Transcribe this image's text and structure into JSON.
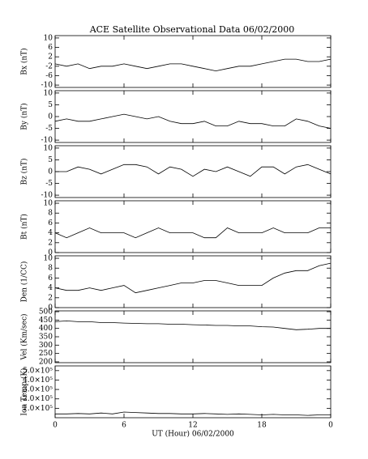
{
  "chart_data": [
    {
      "type": "line",
      "title": "ACE Satellite Observational Data   06/02/2000",
      "ylabel": "Bx (nT)",
      "x": [
        0,
        1,
        2,
        3,
        4,
        5,
        6,
        7,
        8,
        9,
        10,
        11,
        12,
        13,
        14,
        15,
        16,
        17,
        18,
        19,
        20,
        21,
        22,
        23,
        24
      ],
      "values": [
        -1,
        -2,
        -1,
        -3,
        -2,
        -2,
        -1,
        -2,
        -3,
        -2,
        -1,
        -1,
        -2,
        -3,
        -4,
        -3,
        -2,
        -2,
        -1,
        0,
        1,
        1,
        0,
        0,
        1
      ],
      "ylim": [
        -11,
        11
      ],
      "yticks": [
        -10,
        -6,
        -2,
        2,
        6,
        10
      ]
    },
    {
      "type": "line",
      "ylabel": "By (nT)",
      "x": [
        0,
        1,
        2,
        3,
        4,
        5,
        6,
        7,
        8,
        9,
        10,
        11,
        12,
        13,
        14,
        15,
        16,
        17,
        18,
        19,
        20,
        21,
        22,
        23,
        24
      ],
      "values": [
        -2,
        -1,
        -2,
        -2,
        -1,
        0,
        1,
        0,
        -1,
        0,
        -2,
        -3,
        -3,
        -2,
        -4,
        -4,
        -2,
        -3,
        -3,
        -4,
        -4,
        -1,
        -2,
        -4,
        -5
      ],
      "ylim": [
        -11,
        11
      ],
      "yticks": [
        -10,
        -5,
        0,
        5,
        10
      ]
    },
    {
      "type": "line",
      "ylabel": "Bz (nT)",
      "x": [
        0,
        1,
        2,
        3,
        4,
        5,
        6,
        7,
        8,
        9,
        10,
        11,
        12,
        13,
        14,
        15,
        16,
        17,
        18,
        19,
        20,
        21,
        22,
        23,
        24
      ],
      "values": [
        0,
        0,
        2,
        1,
        -1,
        1,
        3,
        3,
        2,
        -1,
        2,
        1,
        -2,
        1,
        0,
        2,
        0,
        -2,
        2,
        2,
        -1,
        2,
        3,
        1,
        -1
      ],
      "ylim": [
        -11,
        11
      ],
      "yticks": [
        -10,
        -5,
        0,
        5,
        10
      ]
    },
    {
      "type": "line",
      "ylabel": "Bt (nT)",
      "x": [
        0,
        1,
        2,
        3,
        4,
        5,
        6,
        7,
        8,
        9,
        10,
        11,
        12,
        13,
        14,
        15,
        16,
        17,
        18,
        19,
        20,
        21,
        22,
        23,
        24
      ],
      "values": [
        4,
        3,
        4,
        5,
        4,
        4,
        4,
        3,
        4,
        5,
        4,
        4,
        4,
        3,
        3,
        5,
        4,
        4,
        4,
        5,
        4,
        4,
        4,
        5,
        5
      ],
      "ylim": [
        0,
        10.5
      ],
      "yticks": [
        0,
        2,
        4,
        6,
        8,
        10
      ]
    },
    {
      "type": "line",
      "ylabel": "Den (1/CC)",
      "x": [
        0,
        1,
        2,
        3,
        4,
        5,
        6,
        7,
        8,
        9,
        10,
        11,
        12,
        13,
        14,
        15,
        16,
        17,
        18,
        19,
        20,
        21,
        22,
        23,
        24
      ],
      "values": [
        4,
        3.5,
        3.5,
        4,
        3.5,
        4,
        4.5,
        3,
        3.5,
        4,
        4.5,
        5,
        5,
        5.5,
        5.5,
        5,
        4.5,
        4.5,
        4.5,
        6,
        7,
        7.5,
        7.5,
        8.5,
        9
      ],
      "ylim": [
        0,
        10.5
      ],
      "yticks": [
        0,
        2,
        4,
        6,
        8,
        10
      ]
    },
    {
      "type": "line",
      "ylabel": "Vel (Km/sec)",
      "x": [
        0,
        1,
        2,
        3,
        4,
        5,
        6,
        7,
        8,
        9,
        10,
        11,
        12,
        13,
        14,
        15,
        16,
        17,
        18,
        19,
        20,
        21,
        22,
        23,
        24
      ],
      "values": [
        440,
        445,
        440,
        440,
        435,
        435,
        432,
        430,
        428,
        428,
        425,
        425,
        422,
        420,
        418,
        418,
        415,
        415,
        410,
        408,
        400,
        392,
        395,
        400,
        400
      ],
      "ylim": [
        195,
        505
      ],
      "yticks": [
        200,
        250,
        300,
        350,
        400,
        450,
        500
      ]
    },
    {
      "type": "line",
      "ylabel": "Ion Temp (K)",
      "xlabel": "UT (Hour)   06/02/2000",
      "x": [
        0,
        1,
        2,
        3,
        4,
        5,
        6,
        7,
        8,
        9,
        10,
        11,
        12,
        13,
        14,
        15,
        16,
        17,
        18,
        19,
        20,
        21,
        22,
        23,
        24
      ],
      "values": [
        40000,
        40000,
        45000,
        40000,
        50000,
        40000,
        60000,
        55000,
        50000,
        45000,
        45000,
        40000,
        40000,
        45000,
        40000,
        35000,
        40000,
        35000,
        30000,
        35000,
        30000,
        30000,
        25000,
        30000,
        30000
      ],
      "ylim": [
        0,
        550000
      ],
      "yticks": [
        {
          "value": 100000,
          "label": "1.0×10⁵"
        },
        {
          "value": 200000,
          "label": "2.0×10⁵"
        },
        {
          "value": 300000,
          "label": "3.0×10⁵"
        },
        {
          "value": 400000,
          "label": "4.0×10⁵"
        },
        {
          "value": 500000,
          "label": "5.0×10⁵"
        }
      ],
      "xlim": [
        0,
        24
      ],
      "xticks": [
        0,
        6,
        12,
        18,
        {
          "value": 24,
          "label": "0"
        }
      ]
    }
  ]
}
